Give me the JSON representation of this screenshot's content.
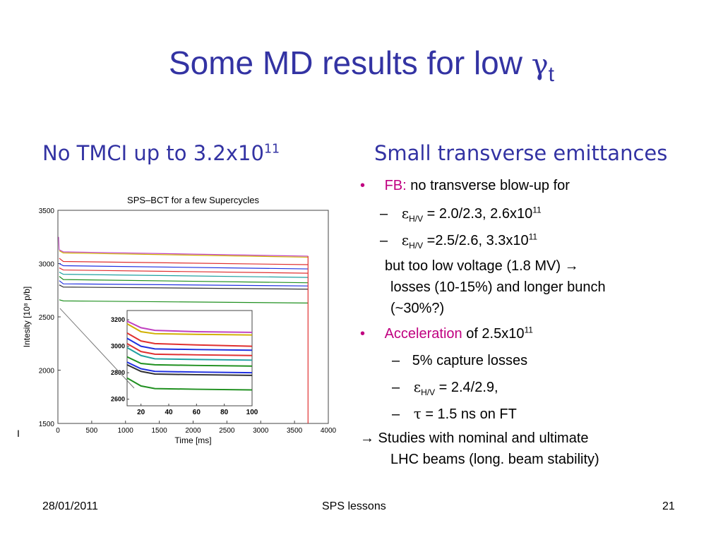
{
  "title": {
    "text": "Some MD results for low ",
    "symbol": "γ",
    "sub": "t"
  },
  "left_heading": {
    "text": "No TMCI up to 3.2x10",
    "sup": "11"
  },
  "right_heading": {
    "text": "Small transverse emittances"
  },
  "bullets": {
    "b1_marker": "•",
    "b1_highlight": "FB:",
    "b1_text": " no transverse blow-up for",
    "s1_dash": "–",
    "s1_symbol": "ε",
    "s1_sub": "H/V",
    "s1_text": " = 2.0/2.3,  2.6x10",
    "s1_sup": "11",
    "s2_dash": "–",
    "s2_symbol": "ε",
    "s2_sub": "H/V",
    "s2_text": " =2.5/2.6,  3.3x10",
    "s2_sup": "11",
    "para1": "but too low voltage (1.8 MV) →",
    "para2": "losses (10-15%) and longer bunch",
    "para3": "(~30%?)",
    "b2_marker": "•",
    "b2_highlight": "Acceleration",
    "b2_text": " of 2.5x10",
    "b2_sup": "11",
    "s3_dash": "–",
    "s3_text": "5% capture losses",
    "s4_dash": "–",
    "s4_symbol": "ε",
    "s4_sub": "H/V",
    "s4_text": "  = 2.4/2.9,",
    "s5_dash": "–",
    "s5_symbol": "τ",
    "s5_text": " = 1.5 ns on FT",
    "concl1": "→ Studies with nominal and ultimate",
    "concl2": "LHC beams (long. beam stability)"
  },
  "stray_mark": "I",
  "footer": {
    "date": "28/01/2011",
    "center": "SPS lessons",
    "page": "21"
  },
  "chart_data": [
    {
      "type": "line",
      "title": "SPS–BCT for a few Supercycles",
      "xlabel": "Time [ms]",
      "ylabel": "Intesity [10⁸ p/b]",
      "xlim": [
        0,
        4000
      ],
      "ylim": [
        1500,
        3500
      ],
      "xticks": [
        "0",
        "500",
        "1000",
        "1500",
        "2000",
        "2500",
        "3000",
        "3500",
        "4000"
      ],
      "yticks": [
        "1500",
        "2000",
        "2500",
        "3000",
        "3500"
      ],
      "grid": false,
      "legend": "none",
      "series": [
        {
          "color": "#c040c0",
          "values": [
            [
              20,
              3130
            ],
            [
              80,
              3110
            ],
            [
              3700,
              3070
            ]
          ]
        },
        {
          "color": "#d0b000",
          "values": [
            [
              20,
              3120
            ],
            [
              80,
              3100
            ],
            [
              3700,
              3060
            ]
          ]
        },
        {
          "color": "#e03030",
          "values": [
            [
              20,
              3050
            ],
            [
              80,
              3020
            ],
            [
              3700,
              2990
            ]
          ]
        },
        {
          "color": "#2030e0",
          "values": [
            [
              20,
              3000
            ],
            [
              80,
              2980
            ],
            [
              3700,
              2950
            ]
          ]
        },
        {
          "color": "#e03030",
          "values": [
            [
              20,
              2960
            ],
            [
              80,
              2940
            ],
            [
              3700,
              2910
            ]
          ]
        },
        {
          "color": "#20a0a0",
          "values": [
            [
              20,
              2920
            ],
            [
              80,
              2900
            ],
            [
              3700,
              2870
            ]
          ]
        },
        {
          "color": "#209020",
          "values": [
            [
              20,
              2880
            ],
            [
              80,
              2850
            ],
            [
              3700,
              2820
            ]
          ]
        },
        {
          "color": "#2030e0",
          "values": [
            [
              20,
              2840
            ],
            [
              80,
              2810
            ],
            [
              3700,
              2790
            ]
          ]
        },
        {
          "color": "#303030",
          "values": [
            [
              20,
              2800
            ],
            [
              80,
              2780
            ],
            [
              3700,
              2760
            ]
          ]
        },
        {
          "color": "#209020",
          "values": [
            [
              20,
              2660
            ],
            [
              80,
              2650
            ],
            [
              3700,
              2630
            ]
          ]
        }
      ],
      "drop_to": 1500,
      "drop_x": 3700
    },
    {
      "type": "line",
      "title": "",
      "xlim": [
        10,
        100
      ],
      "ylim": [
        2550,
        3270
      ],
      "xticks": [
        "20",
        "40",
        "60",
        "80",
        "100"
      ],
      "yticks": [
        "2600",
        "2800",
        "3000",
        "3200"
      ],
      "series": [
        {
          "color": "#c040c0",
          "values": [
            [
              10,
              3190
            ],
            [
              20,
              3140
            ],
            [
              30,
              3120
            ],
            [
              60,
              3110
            ],
            [
              100,
              3105
            ]
          ]
        },
        {
          "color": "#d0b000",
          "values": [
            [
              10,
              3170
            ],
            [
              20,
              3110
            ],
            [
              30,
              3095
            ],
            [
              60,
              3090
            ],
            [
              100,
              3085
            ]
          ]
        },
        {
          "color": "#e03030",
          "values": [
            [
              10,
              3100
            ],
            [
              20,
              3040
            ],
            [
              30,
              3020
            ],
            [
              60,
              3010
            ],
            [
              100,
              3000
            ]
          ]
        },
        {
          "color": "#2030e0",
          "values": [
            [
              10,
              3060
            ],
            [
              20,
              3000
            ],
            [
              30,
              2980
            ],
            [
              60,
              2975
            ],
            [
              100,
              2970
            ]
          ]
        },
        {
          "color": "#e03030",
          "values": [
            [
              10,
              3020
            ],
            [
              20,
              2960
            ],
            [
              30,
              2940
            ],
            [
              60,
              2935
            ],
            [
              100,
              2930
            ]
          ]
        },
        {
          "color": "#20a0a0",
          "values": [
            [
              10,
              2990
            ],
            [
              20,
              2930
            ],
            [
              30,
              2905
            ],
            [
              60,
              2900
            ],
            [
              100,
              2895
            ]
          ]
        },
        {
          "color": "#209020",
          "values": [
            [
              10,
              2920
            ],
            [
              20,
              2870
            ],
            [
              30,
              2860
            ],
            [
              60,
              2855
            ],
            [
              100,
              2850
            ]
          ]
        },
        {
          "color": "#2030e0",
          "values": [
            [
              10,
              2880
            ],
            [
              20,
              2830
            ],
            [
              30,
              2810
            ],
            [
              60,
              2805
            ],
            [
              100,
              2800
            ]
          ]
        },
        {
          "color": "#303030",
          "values": [
            [
              10,
              2860
            ],
            [
              20,
              2810
            ],
            [
              30,
              2790
            ],
            [
              60,
              2785
            ],
            [
              100,
              2780
            ]
          ]
        },
        {
          "color": "#209020",
          "values": [
            [
              10,
              2760
            ],
            [
              20,
              2700
            ],
            [
              30,
              2680
            ],
            [
              60,
              2675
            ],
            [
              100,
              2670
            ]
          ]
        }
      ]
    }
  ]
}
